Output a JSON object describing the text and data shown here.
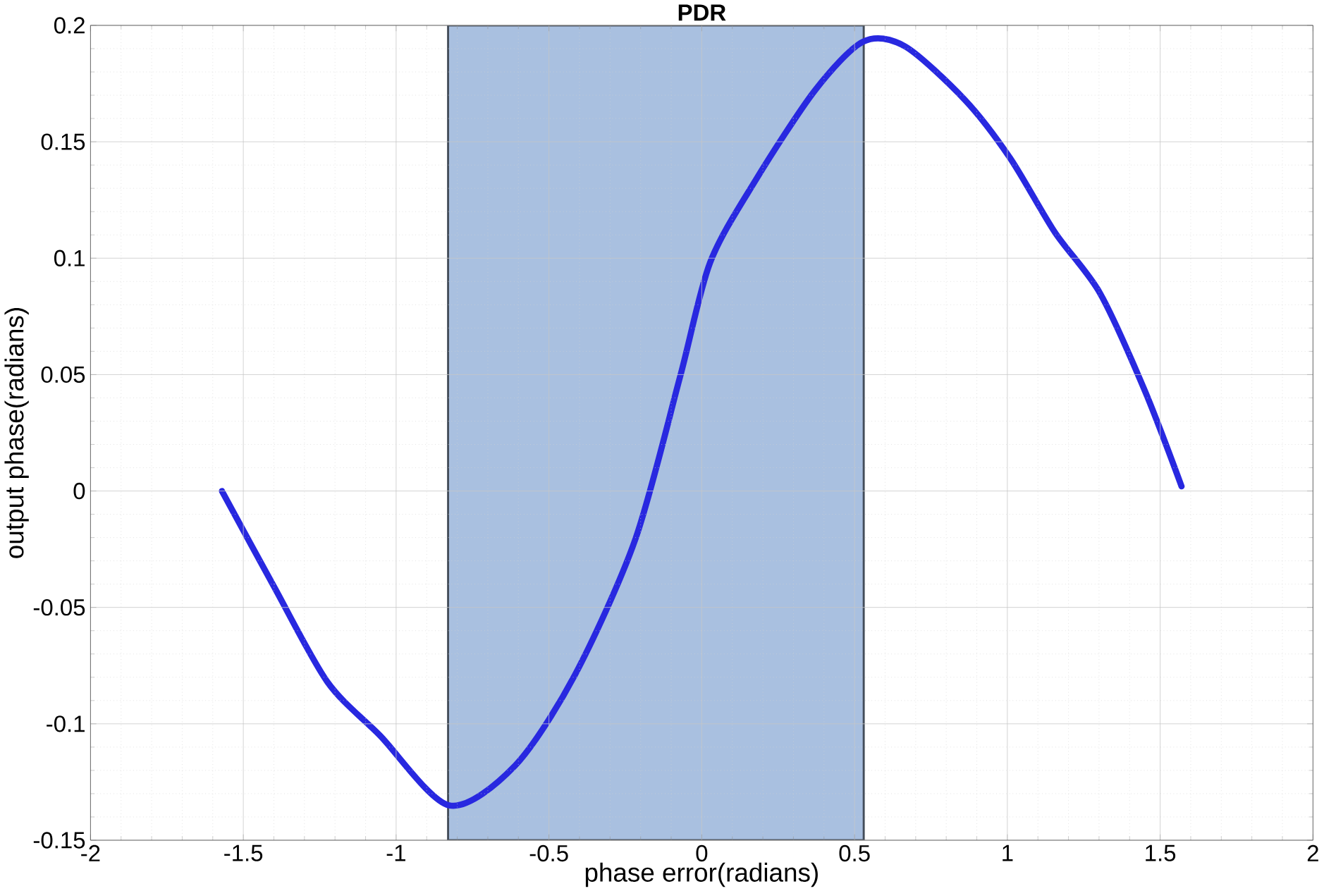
{
  "chart_data": {
    "type": "line",
    "title": "PDR",
    "xlabel": "phase error(radians)",
    "ylabel": "output phase(radians)",
    "xlim": [
      -2,
      2
    ],
    "ylim": [
      -0.15,
      0.2
    ],
    "xticks": [
      -2,
      -1.5,
      -1,
      -0.5,
      0,
      0.5,
      1,
      1.5,
      2
    ],
    "yticks": [
      -0.15,
      -0.1,
      -0.05,
      0,
      0.05,
      0.1,
      0.15,
      0.2
    ],
    "grid": true,
    "bands": [
      {
        "axis": "x",
        "from": -0.83,
        "to": 0.53,
        "color": "#a9c0e0"
      }
    ],
    "series": [
      {
        "color": "#2828e0",
        "x": [
          -1.57,
          -1.4,
          -1.225,
          -1.053,
          -0.827,
          -0.611,
          -0.415,
          -0.218,
          -0.071,
          0.027,
          0.174,
          0.37,
          0.528,
          0.665,
          0.861,
          1.009,
          1.156,
          1.303,
          1.45,
          1.57
        ],
        "values": [
          0,
          -0.041,
          -0.082,
          -0.105,
          -0.135,
          -0.118,
          -0.079,
          -0.021,
          0.049,
          0.098,
          0.133,
          0.172,
          0.193,
          0.191,
          0.168,
          0.143,
          0.111,
          0.085,
          0.043,
          0.002
        ]
      }
    ]
  }
}
